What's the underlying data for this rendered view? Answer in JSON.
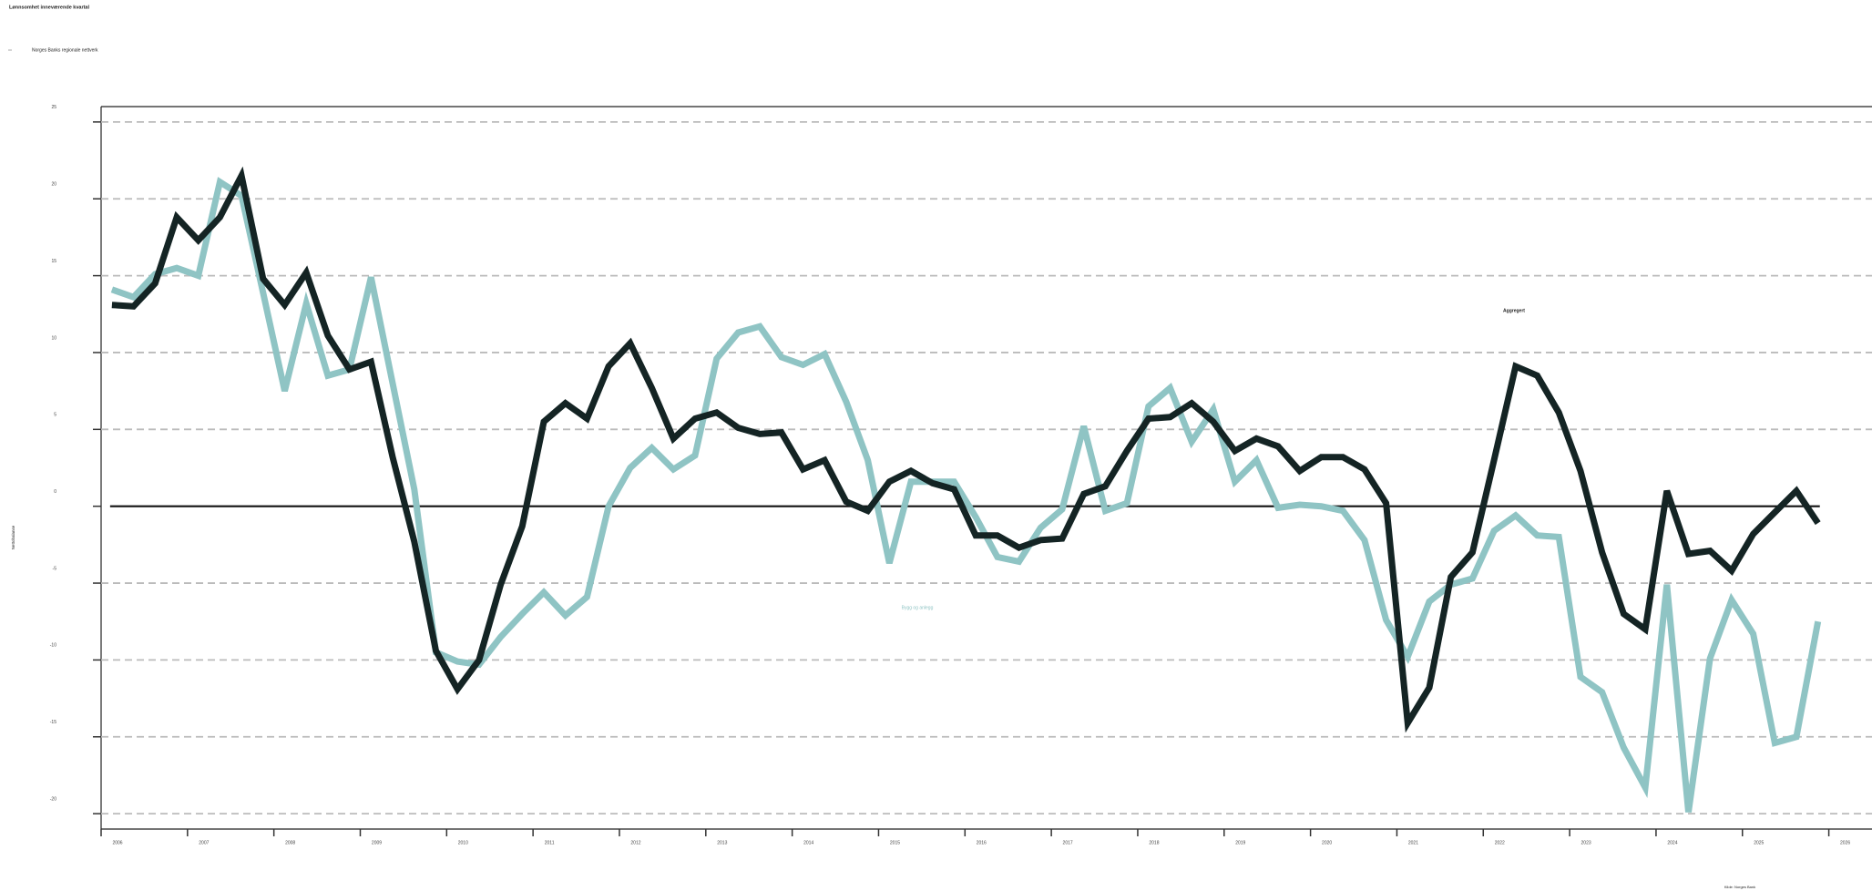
{
  "chart_data": {
    "type": "line",
    "title": "Lønnsomhet inneværende kvartal",
    "subtitle": "Norges Banks regionale nettverk",
    "y_label": "Nettobalanse",
    "source": "Kilde: Norges Bank",
    "annotations": [
      "Aggregert",
      "Bygg og anlegg"
    ],
    "x": [
      2006.125,
      2006.375,
      2006.625,
      2006.875,
      2007.125,
      2007.375,
      2007.625,
      2007.875,
      2008.125,
      2008.375,
      2008.625,
      2008.875,
      2009.125,
      2009.375,
      2009.625,
      2009.875,
      2010.125,
      2010.375,
      2010.625,
      2010.875,
      2011.125,
      2011.375,
      2011.625,
      2011.875,
      2012.125,
      2012.375,
      2012.625,
      2012.875,
      2013.125,
      2013.375,
      2013.625,
      2013.875,
      2014.125,
      2014.375,
      2014.625,
      2014.875,
      2015.125,
      2015.375,
      2015.625,
      2015.875,
      2016.125,
      2016.375,
      2016.625,
      2016.875,
      2017.125,
      2017.375,
      2017.625,
      2017.875,
      2018.125,
      2018.375,
      2018.625,
      2018.875,
      2019.125,
      2019.375,
      2019.625,
      2019.875,
      2020.125,
      2020.375,
      2020.625,
      2020.875,
      2021.125,
      2021.375,
      2021.625,
      2021.875,
      2022.125,
      2022.375,
      2022.625,
      2022.875,
      2023.125,
      2023.375,
      2023.625,
      2023.875,
      2024.125,
      2024.375,
      2024.625,
      2024.875,
      2025.125,
      2025.375,
      2025.625,
      2025.875
    ],
    "series": [
      {
        "name": "Aggregert",
        "color": "#142424",
        "values": [
          13.1,
          13.0,
          14.5,
          18.8,
          17.3,
          18.8,
          21.5,
          14.8,
          13.1,
          15.2,
          11.1,
          8.9,
          9.4,
          3.2,
          -2.3,
          -9.4,
          -11.9,
          -10.0,
          -5.1,
          -1.3,
          5.5,
          6.7,
          5.7,
          9.1,
          10.6,
          7.7,
          4.4,
          5.7,
          6.1,
          5.1,
          4.7,
          4.8,
          2.4,
          3.0,
          0.3,
          -0.3,
          1.6,
          2.3,
          1.5,
          1.1,
          -1.9,
          -1.9,
          -2.7,
          -2.2,
          -2.1,
          0.8,
          1.3,
          3.6,
          5.7,
          5.8,
          6.7,
          5.5,
          3.6,
          4.4,
          3.9,
          2.3,
          3.2,
          3.2,
          2.4,
          0.2,
          -14.1,
          -11.8,
          -4.6,
          -3.0,
          3.0,
          9.1,
          8.5,
          6.1,
          2.3,
          -3.0,
          -7.0,
          -8.0,
          1.0,
          -3.1,
          -2.9,
          -4.2,
          -1.8,
          -0.4,
          1.0,
          -1.1
        ]
      },
      {
        "name": "Bygg og anlegg",
        "color": "#8fc4c4",
        "values": [
          14.1,
          13.6,
          15.1,
          15.5,
          15.0,
          21.1,
          20.2,
          13.9,
          7.5,
          13.2,
          8.5,
          8.9,
          14.9,
          8.0,
          1.1,
          -9.5,
          -10.1,
          -10.3,
          -8.5,
          -7.0,
          -5.6,
          -7.1,
          -5.9,
          0,
          2.5,
          3.8,
          2.4,
          3.3,
          9.6,
          11.3,
          11.7,
          9.7,
          9.2,
          9.9,
          6.8,
          3.0,
          -3.7,
          1.6,
          1.6,
          1.6,
          -0.7,
          -3.3,
          -3.6,
          -1.4,
          -0.2,
          5.2,
          -0.3,
          0.2,
          6.5,
          7.7,
          4.2,
          6.3,
          1.6,
          3.0,
          -0.1,
          0.1,
          0,
          -0.3,
          -2.2,
          -7.4,
          -9.8,
          -6.2,
          -5.1,
          -4.7,
          -1.6,
          -0.6,
          -1.9,
          -2.0,
          -11.1,
          -12.1,
          -15.7,
          -18.3,
          -5.1,
          -19.9,
          -9.9,
          -6.1,
          -8.3,
          -15.4,
          -15.0,
          -7.5
        ]
      }
    ],
    "xlim": [
      2006,
      2026.5
    ],
    "xticks": [
      2006,
      2007,
      2008,
      2009,
      2010,
      2011,
      2012,
      2013,
      2014,
      2015,
      2016,
      2017,
      2018,
      2019,
      2020,
      2021,
      2022,
      2023,
      2024,
      2025,
      2026
    ],
    "ylim": [
      -21,
      26
    ],
    "yticks": [
      -20,
      -15,
      -10,
      -5,
      0,
      5,
      10,
      15,
      20,
      25
    ],
    "grid": true,
    "zero_line": true
  }
}
